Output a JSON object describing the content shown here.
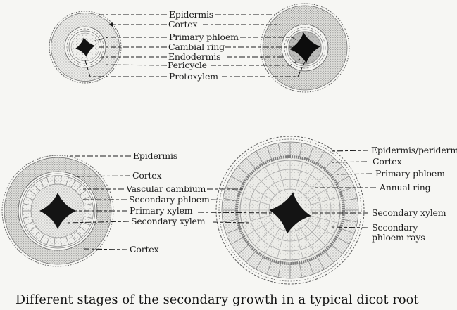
{
  "figure": {
    "caption": "Different stages of the secondary growth in a typical dicot root",
    "colors": {
      "paper": "#f6f6f3",
      "ink": "#1c1c1c"
    },
    "top_row_labels": [
      "Epidermis",
      "Cortex",
      "Primary phloem",
      "Cambial ring",
      "Endodermis",
      "Pericycle",
      "Protoxylem"
    ],
    "bottom_left_labels": [
      "Epidermis",
      "Cortex",
      "Vascular cambium",
      "Secondary phloem",
      "Primary xylem",
      "Secondary xylem",
      "Cortex"
    ],
    "bottom_right_labels": [
      "Epidermis/periderm",
      "Cortex",
      "Primary phloem",
      "Annual ring",
      "Secondary xylem",
      "Secondary phloem rays"
    ]
  }
}
